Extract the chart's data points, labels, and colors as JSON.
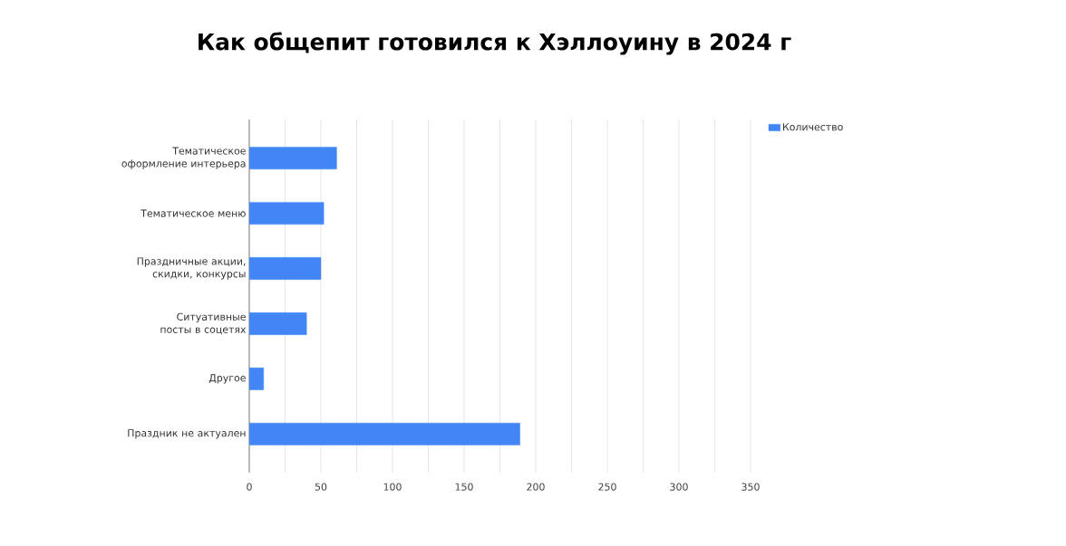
{
  "chart_data": {
    "type": "bar",
    "orientation": "horizontal",
    "title": "Как общепит готовился к Хэллоуину в 2024 г",
    "categories": [
      "Тематическое оформление интерьера",
      "Тематическое меню",
      "Праздничные акции, скидки, конкурсы",
      "Ситуативные посты в соцетях",
      "Другое",
      "Праздник не актуален"
    ],
    "series": [
      {
        "name": "Количество",
        "color": "#4285f4",
        "values": [
          61,
          52,
          50,
          40,
          10,
          189
        ]
      }
    ],
    "xlim": [
      0,
      350
    ],
    "xticks": [
      0,
      {
        "value": 25,
        "label": null
      },
      50,
      {
        "value": 75,
        "label": null
      },
      100,
      {
        "value": 125,
        "label": null
      },
      150,
      {
        "value": 175,
        "label": null
      },
      200,
      {
        "value": 225,
        "label": null
      },
      250,
      {
        "value": 275,
        "label": null
      },
      300,
      {
        "value": 325,
        "label": null
      },
      350
    ],
    "grid": "x",
    "legend": "top right"
  }
}
